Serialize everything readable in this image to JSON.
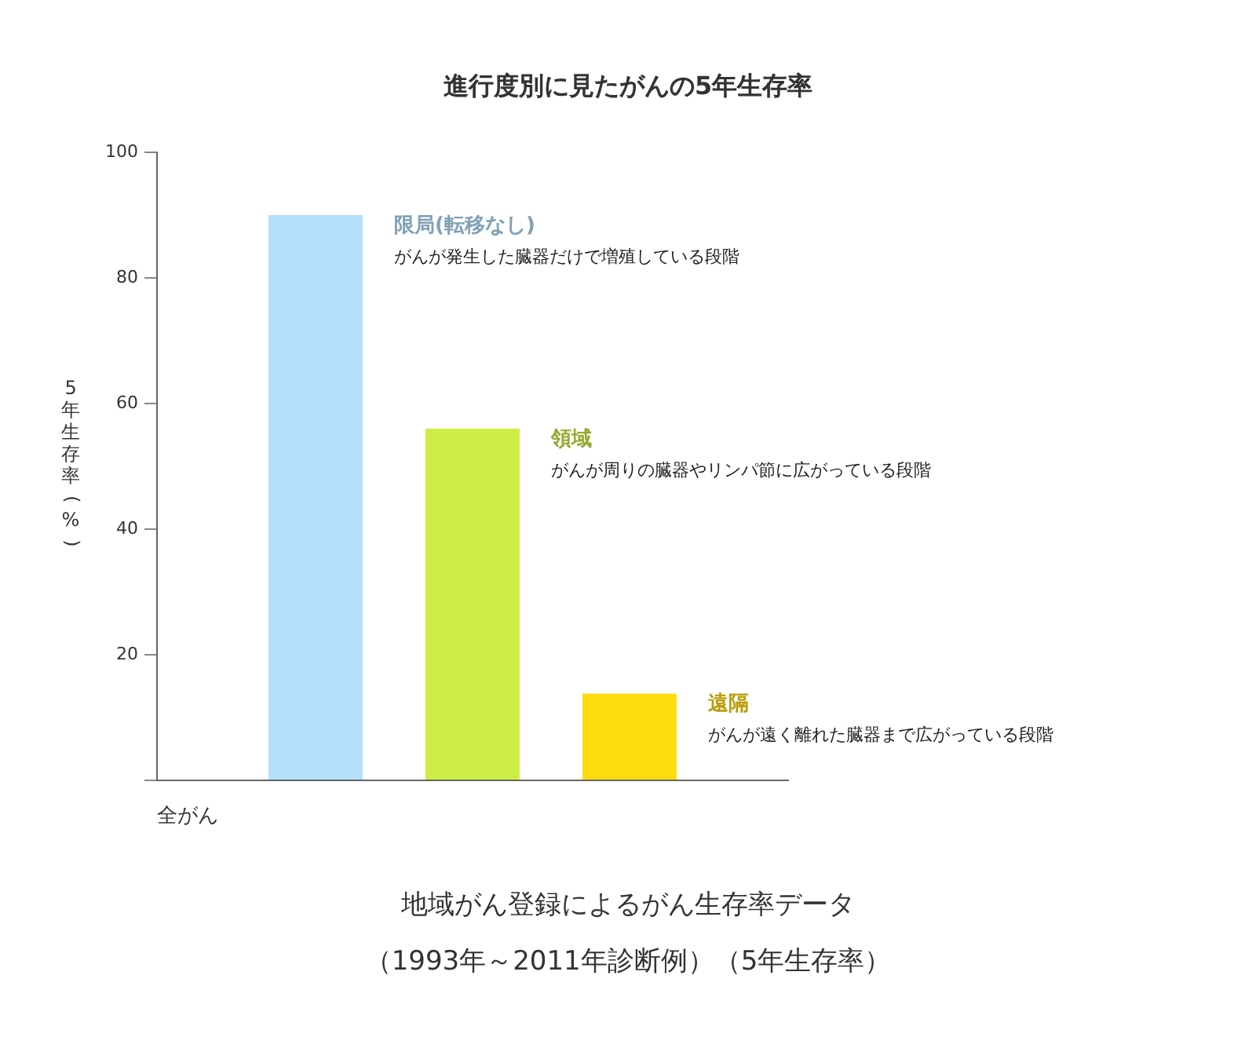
{
  "chart_data": {
    "type": "bar",
    "title": "進行度別に見たがんの5年生存率",
    "xlabel": "全がん",
    "ylabel": "5年生存率(%)",
    "categories": [
      null
    ],
    "series": [
      {
        "name": "限局(転移なし)",
        "color": "#b3dffb",
        "values": [
          90
        ]
      },
      {
        "name": "領域",
        "color": "#cdee44",
        "values": [
          56
        ]
      },
      {
        "name": "遠隔",
        "color": "#ffdc10",
        "values": [
          13.8
        ]
      }
    ],
    "ylim": [
      0,
      100
    ],
    "yticks": [
      {
        "value": 0,
        "label": null
      },
      20,
      40,
      60,
      80,
      100
    ],
    "grid": false,
    "legend": false,
    "annotations": [
      "がんが発生した臓器だけで増殖している段階",
      "がんが周りの臓器やリンパ節に広がっている段階",
      "がんが遠く離れた臓器まで広がっている段階",
      "地域がん登録によるがん生存率データ",
      "（1993年～2011年診断例）（5年生存率）"
    ]
  }
}
